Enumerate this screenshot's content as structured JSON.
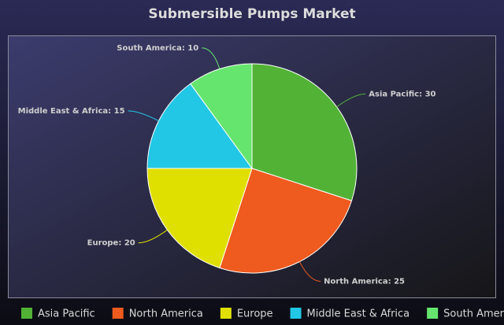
{
  "chart_data": {
    "type": "pie",
    "title": "Submersible Pumps Market",
    "categories": [
      "Asia Pacific",
      "North America",
      "Europe",
      "Middle East & Africa",
      "South America"
    ],
    "values": [
      30,
      25,
      20,
      15,
      10
    ],
    "value_labels": [
      "Asia Pacific: 30",
      "North America: 25",
      "Europe: 20",
      "Middle East & Africa: 15",
      "South America: 10"
    ],
    "colors": [
      "#52b236",
      "#ef5a1e",
      "#dfe000",
      "#22c7e5",
      "#66e56e"
    ],
    "legend": "bottom"
  }
}
